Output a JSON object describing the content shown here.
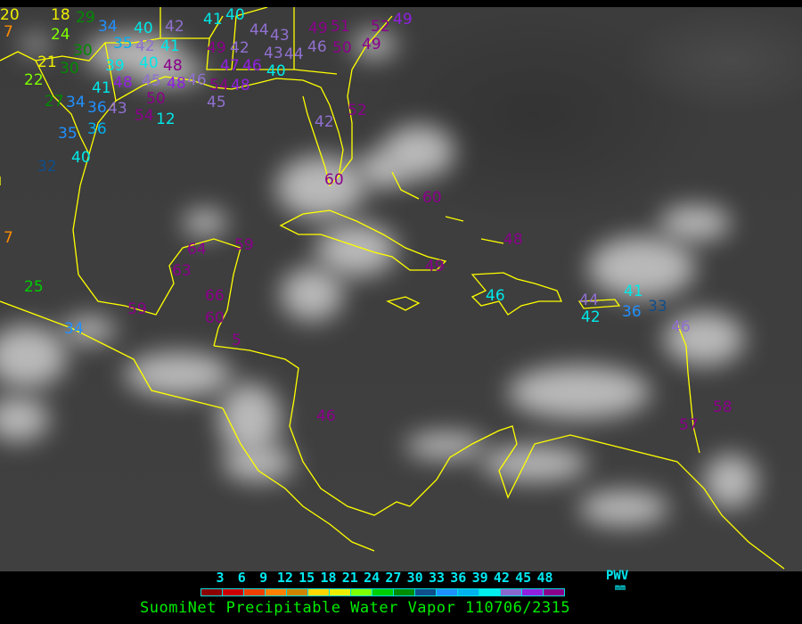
{
  "map": {
    "coastline_color": "#ffff00",
    "labels": [
      {
        "value": "20",
        "color": "#eeee00"
      },
      {
        "value": "7",
        "color": "#ff8c00"
      },
      {
        "value": "18",
        "color": "#eeee00"
      },
      {
        "value": "29",
        "color": "#008b00"
      },
      {
        "value": "24",
        "color": "#80ff00"
      },
      {
        "value": "30",
        "color": "#008b00"
      },
      {
        "value": "34",
        "color": "#2090ff"
      },
      {
        "value": "35",
        "color": "#00b0f0"
      },
      {
        "value": "42",
        "color": "#9070d0"
      },
      {
        "value": "40",
        "color": "#00e8e8"
      },
      {
        "value": "40",
        "color": "#00e8e8"
      },
      {
        "value": "41",
        "color": "#00e8e8"
      },
      {
        "value": "39",
        "color": "#00e8e8"
      },
      {
        "value": "48",
        "color": "#9020e0"
      },
      {
        "value": "45",
        "color": "#9070d0"
      },
      {
        "value": "48",
        "color": "#8b008b"
      },
      {
        "value": "50",
        "color": "#8b008b"
      },
      {
        "value": "48",
        "color": "#9020e0"
      },
      {
        "value": "41",
        "color": "#00e8e8"
      },
      {
        "value": "21",
        "color": "#eeee00"
      },
      {
        "value": "30",
        "color": "#008b00"
      },
      {
        "value": "22",
        "color": "#80ff00"
      },
      {
        "value": "27",
        "color": "#008b00"
      },
      {
        "value": "34",
        "color": "#2090ff"
      },
      {
        "value": "36",
        "color": "#2090ff"
      },
      {
        "value": "43",
        "color": "#9070d0"
      },
      {
        "value": "54",
        "color": "#8b008b"
      },
      {
        "value": "12",
        "color": "#00e8e8"
      },
      {
        "value": "35",
        "color": "#2090ff"
      },
      {
        "value": "36",
        "color": "#00b0f0"
      },
      {
        "value": "40",
        "color": "#00e8e8"
      },
      {
        "value": "32",
        "color": "#104e8b"
      },
      {
        "value": "42",
        "color": "#9070d0"
      },
      {
        "value": "41",
        "color": "#00e8e8"
      },
      {
        "value": "40",
        "color": "#00e8e8"
      },
      {
        "value": "49",
        "color": "#8b008b"
      },
      {
        "value": "42",
        "color": "#9070d0"
      },
      {
        "value": "47",
        "color": "#9020e0"
      },
      {
        "value": "46",
        "color": "#9070d0"
      },
      {
        "value": "54",
        "color": "#8b008b"
      },
      {
        "value": "48",
        "color": "#9020e0"
      },
      {
        "value": "46",
        "color": "#9020e0"
      },
      {
        "value": "45",
        "color": "#9070d0"
      },
      {
        "value": "44",
        "color": "#9070d0"
      },
      {
        "value": "43",
        "color": "#9070d0"
      },
      {
        "value": "43",
        "color": "#9070d0"
      },
      {
        "value": "44",
        "color": "#9070d0"
      },
      {
        "value": "40",
        "color": "#00e8e8"
      },
      {
        "value": "49",
        "color": "#8b008b"
      },
      {
        "value": "51",
        "color": "#8b008b"
      },
      {
        "value": "46",
        "color": "#9070d0"
      },
      {
        "value": "50",
        "color": "#8b008b"
      },
      {
        "value": "52",
        "color": "#8b008b"
      },
      {
        "value": "49",
        "color": "#8b008b"
      },
      {
        "value": "49",
        "color": "#9020e0"
      },
      {
        "value": "42",
        "color": "#9070d0"
      },
      {
        "value": "52",
        "color": "#8b008b"
      },
      {
        "value": "60",
        "color": "#8b008b"
      },
      {
        "value": "60",
        "color": "#8b008b"
      },
      {
        "value": "48",
        "color": "#8b008b"
      },
      {
        "value": "49",
        "color": "#8b008b"
      },
      {
        "value": "59",
        "color": "#8b008b"
      },
      {
        "value": "64",
        "color": "#8b008b"
      },
      {
        "value": "63",
        "color": "#8b008b"
      },
      {
        "value": "66",
        "color": "#8b008b"
      },
      {
        "value": "60",
        "color": "#8b008b"
      },
      {
        "value": "59",
        "color": "#8b008b"
      },
      {
        "value": "5",
        "color": "#8b008b"
      },
      {
        "value": "46",
        "color": "#8b008b"
      },
      {
        "value": "25",
        "color": "#00cd00"
      },
      {
        "value": "7",
        "color": "#ff8c00"
      },
      {
        "value": "34",
        "color": "#2090ff"
      },
      {
        "value": "46",
        "color": "#00e8e8"
      },
      {
        "value": "44",
        "color": "#9070d0"
      },
      {
        "value": "42",
        "color": "#00e8e8"
      },
      {
        "value": "41",
        "color": "#00e8e8"
      },
      {
        "value": "36",
        "color": "#2090ff"
      },
      {
        "value": "33",
        "color": "#104e8b"
      },
      {
        "value": "46",
        "color": "#9070d0"
      },
      {
        "value": "58",
        "color": "#8b008b"
      },
      {
        "value": "57",
        "color": "#8b008b"
      }
    ]
  },
  "legend": {
    "ticks": [
      "3",
      "6",
      "9",
      "12",
      "15",
      "18",
      "21",
      "24",
      "27",
      "30",
      "33",
      "36",
      "39",
      "42",
      "45",
      "48"
    ],
    "colors": [
      "#8b0000",
      "#cd0000",
      "#ee4000",
      "#ff8000",
      "#cd8500",
      "#ffd700",
      "#eeee00",
      "#80ff00",
      "#00cd00",
      "#008b00",
      "#104e8b",
      "#1e90ff",
      "#00b2ee",
      "#00eeee",
      "#8968cd",
      "#9020e0",
      "#8b008b"
    ],
    "unit_label": "PWV",
    "unit": "mm",
    "title": "SuomiNet Precipitable Water Vapor 110706/2315"
  }
}
